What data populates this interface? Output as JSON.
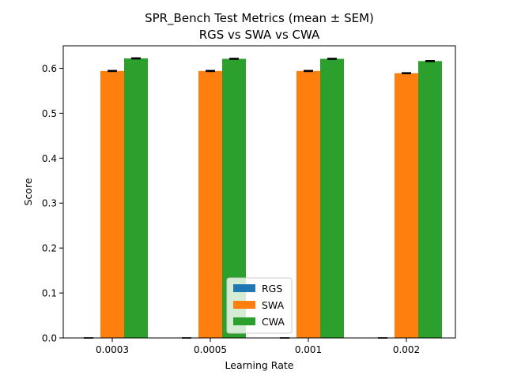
{
  "chart_data": {
    "type": "bar",
    "title": "SPR_Bench Test Metrics (mean ± SEM)",
    "subtitle": "RGS vs SWA vs CWA",
    "xlabel": "Learning Rate",
    "ylabel": "Score",
    "categories": [
      "0.0003",
      "0.0005",
      "0.001",
      "0.002"
    ],
    "ylim": [
      0,
      0.65
    ],
    "yticks": [
      "0.0",
      "0.1",
      "0.2",
      "0.3",
      "0.4",
      "0.5",
      "0.6"
    ],
    "grid": false,
    "legend_position": "bottom-center",
    "series": [
      {
        "name": "RGS",
        "color": "#1f77b4",
        "values": [
          0.0,
          0.0,
          0.0,
          0.0
        ],
        "sem": [
          0.0,
          0.0,
          0.0,
          0.0
        ]
      },
      {
        "name": "SWA",
        "color": "#ff7f0e",
        "values": [
          0.594,
          0.594,
          0.594,
          0.589
        ],
        "sem": [
          0.001,
          0.001,
          0.001,
          0.001
        ]
      },
      {
        "name": "CWA",
        "color": "#2ca02c",
        "values": [
          0.622,
          0.621,
          0.621,
          0.616
        ],
        "sem": [
          0.001,
          0.001,
          0.001,
          0.001
        ]
      }
    ]
  }
}
